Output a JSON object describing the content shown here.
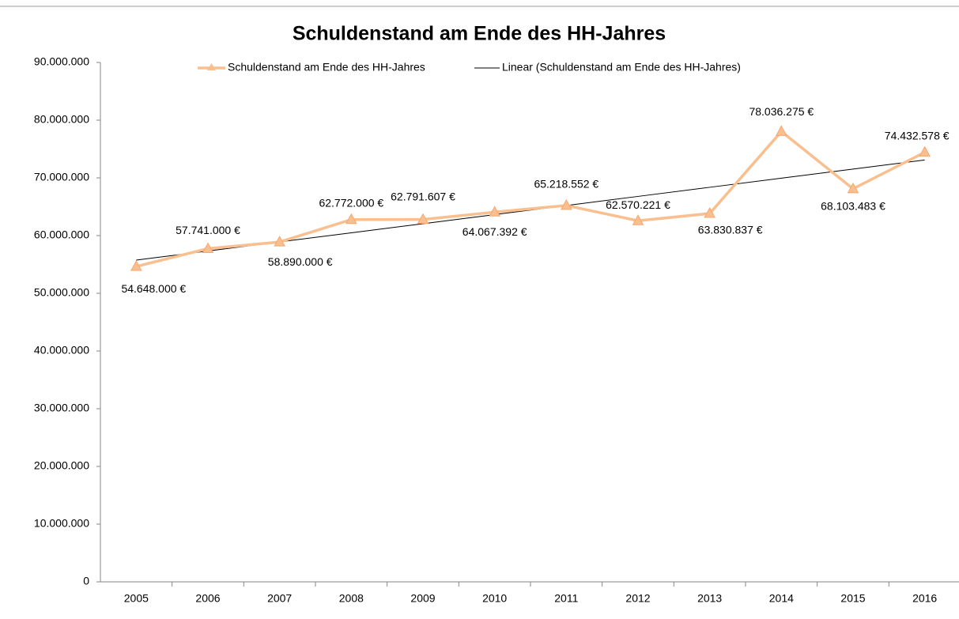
{
  "chart_data": {
    "type": "line",
    "title": "Schuldenstand am Ende des HH-Jahres",
    "categories": [
      "2005",
      "2006",
      "2007",
      "2008",
      "2009",
      "2010",
      "2011",
      "2012",
      "2013",
      "2014",
      "2015",
      "2016"
    ],
    "series": [
      {
        "name": "Schuldenstand am Ende des HH-Jahres",
        "color": "#f9bf8f",
        "values": [
          54648000,
          57741000,
          58890000,
          62772000,
          62791607,
          64067392,
          65218552,
          62570221,
          63830837,
          78036275,
          68103483,
          74432578
        ],
        "value_labels": [
          "54.648.000 €",
          "57.741.000 €",
          "58.890.000 €",
          "62.772.000 €",
          "62.791.607 €",
          "64.067.392 €",
          "65.218.552 €",
          "62.570.221 €",
          "63.830.837 €",
          "78.036.275 €",
          "68.103.483 €",
          "74.432.578 €"
        ]
      },
      {
        "name": "Linear (Schuldenstand am Ende des HH-Jahres)",
        "color": "#000000",
        "values": [
          55758000,
          57334000,
          58910000,
          60486000,
          62061000,
          63637000,
          65213000,
          66789000,
          68365000,
          69941000,
          71517000,
          73093000
        ]
      }
    ],
    "ylim": [
      0,
      90000000
    ],
    "yticks": [
      0,
      {
        "value": 10000000,
        "label": "10.000.000"
      },
      {
        "value": 20000000,
        "label": "20.000.000"
      },
      {
        "value": 30000000,
        "label": "30.000.000"
      },
      {
        "value": 40000000,
        "label": "40.000.000"
      },
      {
        "value": 50000000,
        "label": "50.000.000"
      },
      {
        "value": 60000000,
        "label": "60.000.000"
      },
      {
        "value": 70000000,
        "label": "70.000.000"
      },
      {
        "value": 80000000,
        "label": "80.000.000"
      },
      {
        "value": 90000000,
        "label": "90.000.000"
      }
    ],
    "legend": "top"
  }
}
